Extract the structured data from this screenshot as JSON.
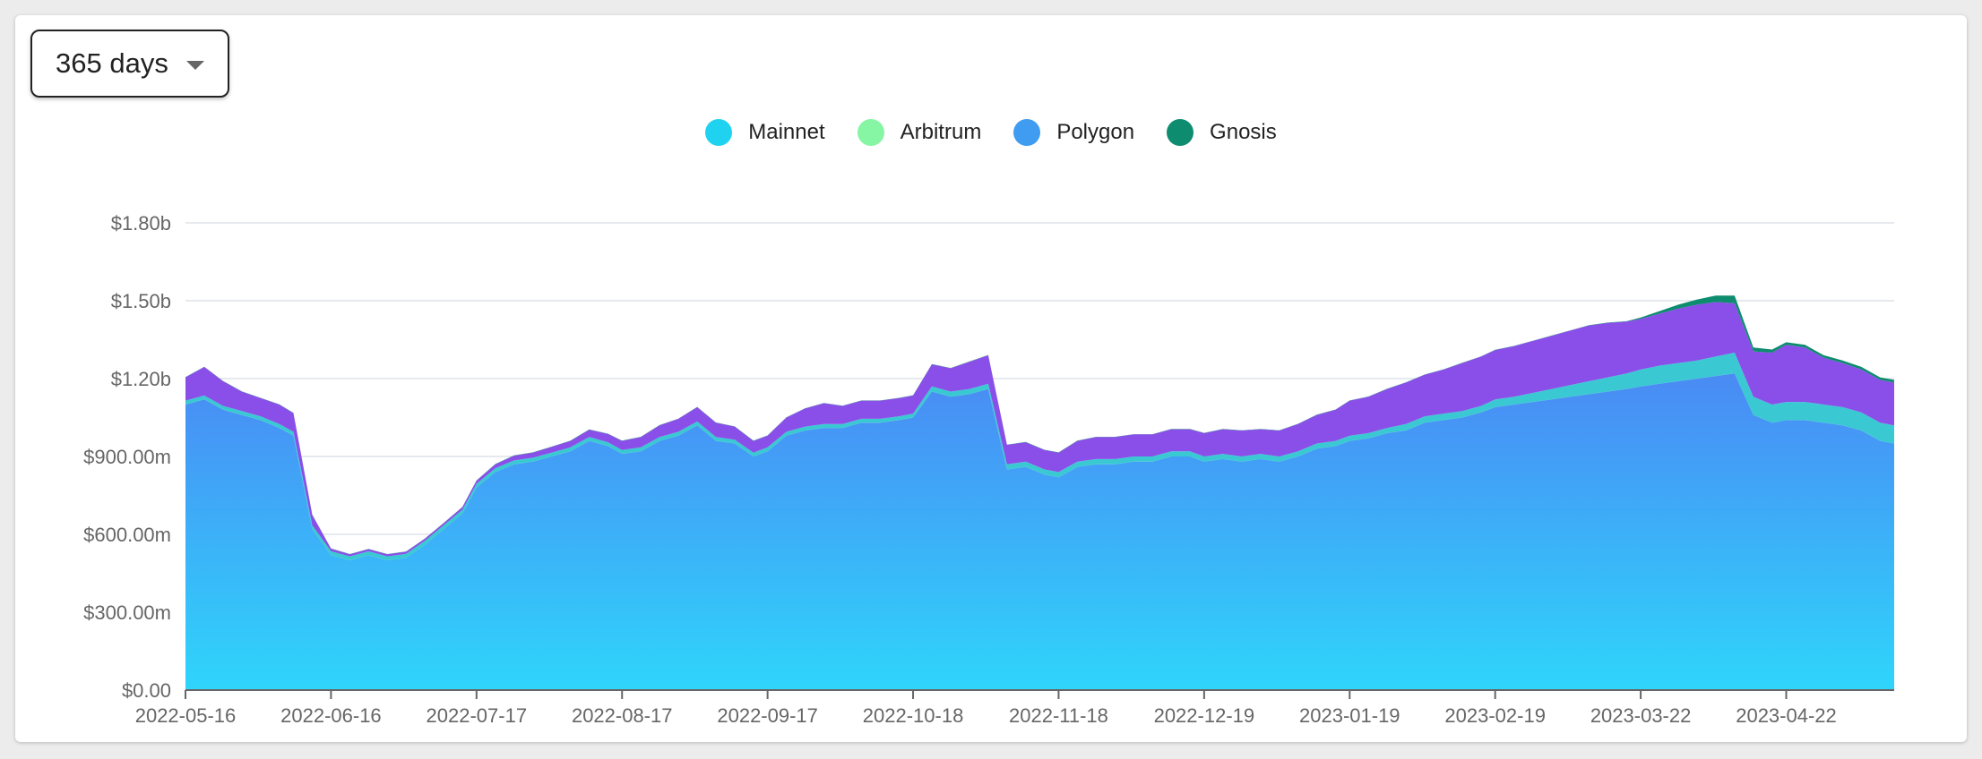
{
  "range_selector": {
    "label": "365 days"
  },
  "chart_data": {
    "type": "area",
    "stacked": true,
    "legend_position": "top-center",
    "grid": true,
    "x_ticks": [
      "2022-05-16",
      "2022-06-16",
      "2022-07-17",
      "2022-08-17",
      "2022-09-17",
      "2022-10-18",
      "2022-11-18",
      "2022-12-19",
      "2023-01-19",
      "2023-02-19",
      "2023-03-22",
      "2023-04-22"
    ],
    "y_ticks": [
      "$0.00",
      "$300.00m",
      "$600.00m",
      "$900.00m",
      "$1.20b",
      "$1.50b",
      "$1.80b"
    ],
    "ylim": [
      0,
      1800000000
    ],
    "x": [
      "2022-05-16",
      "2022-05-20",
      "2022-05-24",
      "2022-05-28",
      "2022-06-01",
      "2022-06-05",
      "2022-06-08",
      "2022-06-12",
      "2022-06-16",
      "2022-06-20",
      "2022-06-24",
      "2022-06-28",
      "2022-07-02",
      "2022-07-06",
      "2022-07-10",
      "2022-07-14",
      "2022-07-17",
      "2022-07-21",
      "2022-07-25",
      "2022-07-29",
      "2022-08-02",
      "2022-08-06",
      "2022-08-10",
      "2022-08-14",
      "2022-08-17",
      "2022-08-21",
      "2022-08-25",
      "2022-08-29",
      "2022-09-02",
      "2022-09-06",
      "2022-09-10",
      "2022-09-14",
      "2022-09-17",
      "2022-09-21",
      "2022-09-25",
      "2022-09-29",
      "2022-10-03",
      "2022-10-07",
      "2022-10-11",
      "2022-10-15",
      "2022-10-18",
      "2022-10-22",
      "2022-10-26",
      "2022-10-30",
      "2022-11-03",
      "2022-11-07",
      "2022-11-11",
      "2022-11-15",
      "2022-11-18",
      "2022-11-22",
      "2022-11-26",
      "2022-11-30",
      "2022-12-04",
      "2022-12-08",
      "2022-12-12",
      "2022-12-16",
      "2022-12-19",
      "2022-12-23",
      "2022-12-27",
      "2022-12-31",
      "2023-01-04",
      "2023-01-08",
      "2023-01-12",
      "2023-01-16",
      "2023-01-19",
      "2023-01-23",
      "2023-01-27",
      "2023-01-31",
      "2023-02-04",
      "2023-02-08",
      "2023-02-12",
      "2023-02-16",
      "2023-02-19",
      "2023-02-23",
      "2023-02-27",
      "2023-03-03",
      "2023-03-07",
      "2023-03-11",
      "2023-03-15",
      "2023-03-19",
      "2023-03-22",
      "2023-03-26",
      "2023-03-30",
      "2023-04-03",
      "2023-04-07",
      "2023-04-11",
      "2023-04-15",
      "2023-04-19",
      "2023-04-22",
      "2023-04-26",
      "2023-04-30",
      "2023-05-04",
      "2023-05-08",
      "2023-05-12",
      "2023-05-15"
    ],
    "series": [
      {
        "name": "Mainnet",
        "color": "#8a4fe8",
        "values": [
          90,
          110,
          95,
          75,
          70,
          75,
          72,
          40,
          10,
          8,
          8,
          8,
          8,
          8,
          8,
          10,
          12,
          15,
          18,
          20,
          22,
          25,
          28,
          32,
          35,
          40,
          45,
          50,
          55,
          55,
          50,
          45,
          45,
          55,
          70,
          80,
          70,
          70,
          70,
          70,
          70,
          85,
          90,
          105,
          110,
          75,
          75,
          75,
          75,
          80,
          85,
          85,
          85,
          85,
          85,
          85,
          90,
          95,
          100,
          95,
          100,
          105,
          110,
          120,
          135,
          140,
          150,
          160,
          160,
          170,
          185,
          190,
          190,
          195,
          200,
          205,
          210,
          215,
          210,
          200,
          195,
          200,
          210,
          215,
          210,
          190,
          175,
          200,
          220,
          210,
          180,
          170,
          165,
          165,
          165
        ]
      },
      {
        "name": "Arbitrum",
        "color": "#3ac9d2",
        "values": [
          15,
          15,
          15,
          15,
          15,
          15,
          15,
          15,
          15,
          15,
          15,
          15,
          15,
          15,
          15,
          15,
          15,
          15,
          15,
          15,
          15,
          15,
          15,
          15,
          15,
          15,
          15,
          15,
          15,
          15,
          15,
          15,
          15,
          15,
          15,
          15,
          15,
          15,
          15,
          15,
          15,
          20,
          20,
          20,
          20,
          20,
          20,
          20,
          20,
          20,
          20,
          20,
          20,
          20,
          20,
          20,
          20,
          20,
          20,
          20,
          20,
          20,
          20,
          20,
          20,
          20,
          20,
          25,
          25,
          25,
          25,
          25,
          30,
          30,
          35,
          40,
          45,
          50,
          55,
          60,
          65,
          70,
          70,
          70,
          75,
          80,
          70,
          70,
          70,
          70,
          70,
          70,
          70,
          70,
          70
        ]
      },
      {
        "name": "Polygon",
        "color": "#4a8af4",
        "values": [
          1100,
          1120,
          1080,
          1060,
          1040,
          1010,
          980,
          620,
          520,
          500,
          520,
          500,
          510,
          560,
          620,
          680,
          780,
          840,
          870,
          880,
          900,
          920,
          960,
          940,
          910,
          920,
          960,
          980,
          1020,
          960,
          950,
          900,
          920,
          980,
          1000,
          1010,
          1010,
          1030,
          1030,
          1040,
          1050,
          1150,
          1130,
          1140,
          1160,
          850,
          860,
          830,
          820,
          860,
          870,
          870,
          880,
          880,
          900,
          900,
          880,
          890,
          880,
          890,
          880,
          900,
          930,
          940,
          960,
          970,
          990,
          1000,
          1030,
          1040,
          1050,
          1070,
          1090,
          1100,
          1110,
          1120,
          1130,
          1140,
          1150,
          1160,
          1170,
          1180,
          1190,
          1200,
          1210,
          1220,
          1060,
          1030,
          1040,
          1040,
          1030,
          1020,
          1000,
          960,
          950
        ]
      },
      {
        "name": "Gnosis",
        "color": "#0e8c6f",
        "values": [
          1,
          1,
          1,
          1,
          1,
          1,
          1,
          1,
          1,
          1,
          1,
          1,
          1,
          1,
          1,
          1,
          1,
          1,
          1,
          1,
          1,
          1,
          1,
          1,
          1,
          1,
          1,
          1,
          1,
          1,
          1,
          1,
          1,
          1,
          1,
          1,
          1,
          1,
          1,
          1,
          1,
          1,
          1,
          1,
          1,
          1,
          1,
          1,
          1,
          1,
          1,
          1,
          1,
          1,
          1,
          1,
          1,
          1,
          1,
          1,
          1,
          1,
          1,
          1,
          1,
          1,
          1,
          1,
          1,
          1,
          1,
          1,
          1,
          1,
          1,
          1,
          1,
          1,
          1,
          1,
          5,
          10,
          15,
          20,
          25,
          30,
          15,
          12,
          10,
          10,
          10,
          10,
          10,
          10,
          10
        ]
      }
    ],
    "value_unit": "millions USD",
    "legend": [
      {
        "name": "Mainnet",
        "color": "#1fd3f0"
      },
      {
        "name": "Arbitrum",
        "color": "#86f5a4"
      },
      {
        "name": "Polygon",
        "color": "#3f9cf0"
      },
      {
        "name": "Gnosis",
        "color": "#0e8c6f"
      }
    ]
  }
}
